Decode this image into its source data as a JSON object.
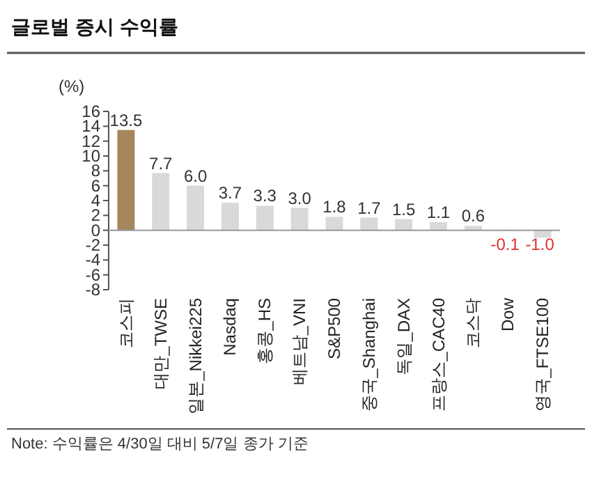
{
  "chart_data": {
    "type": "bar",
    "title": "글로벌 증시 수익률",
    "ylabel": "(%)",
    "categories": [
      "코스피",
      "대만_TWSE",
      "일본_Nikkei225",
      "Nasdaq",
      "홍콩_HS",
      "베트남_VNI",
      "S&P500",
      "중국_Shanghai",
      "독일_DAX",
      "프랑스_CAC40",
      "코스닥",
      "Dow",
      "영국_FTSE100"
    ],
    "values": [
      13.5,
      7.7,
      6.0,
      3.7,
      3.3,
      3.0,
      1.8,
      1.7,
      1.5,
      1.1,
      0.6,
      -0.1,
      -1.0
    ],
    "colors": [
      "#a6865c",
      "#d9d9d9",
      "#d9d9d9",
      "#d9d9d9",
      "#d9d9d9",
      "#d9d9d9",
      "#d9d9d9",
      "#d9d9d9",
      "#d9d9d9",
      "#d9d9d9",
      "#d9d9d9",
      "#d9d9d9",
      "#d9d9d9"
    ],
    "ylim": [
      -8,
      16
    ],
    "yticks": [
      -8,
      -6,
      -4,
      -2,
      0,
      2,
      4,
      6,
      8,
      10,
      12,
      14,
      16
    ],
    "value_labels": [
      "13.5",
      "7.7",
      "6.0",
      "3.7",
      "3.3",
      "3.0",
      "1.8",
      "1.7",
      "1.5",
      "1.1",
      "0.6",
      "-0.1",
      "-1.0"
    ],
    "annotations": [
      "Note: 수익률은 4/30일 대비 5/7일 종가 기준"
    ]
  }
}
